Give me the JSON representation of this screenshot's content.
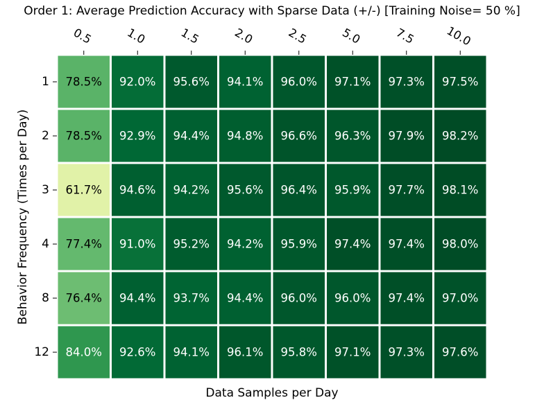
{
  "chart_data": {
    "type": "heatmap",
    "title": "Order 1: Average Prediction Accuracy with Sparse Data (+/-) [Training Noise= 50 %]",
    "xlabel": "Data Samples per Day",
    "ylabel": "Behavior Frequency (Times per Day)",
    "x_categories": [
      "0.5",
      "1.0",
      "1.5",
      "2.0",
      "2.5",
      "5.0",
      "7.5",
      "10.0"
    ],
    "y_categories": [
      "1",
      "2",
      "3",
      "4",
      "8",
      "12"
    ],
    "values": [
      [
        78.5,
        92.0,
        95.6,
        94.1,
        96.0,
        97.1,
        97.3,
        97.5
      ],
      [
        78.5,
        92.9,
        94.4,
        94.8,
        96.6,
        96.3,
        97.9,
        98.2
      ],
      [
        61.7,
        94.6,
        94.2,
        95.6,
        96.4,
        95.9,
        97.7,
        98.1
      ],
      [
        77.4,
        91.0,
        95.2,
        94.2,
        95.9,
        97.4,
        97.4,
        98.0
      ],
      [
        76.4,
        94.4,
        93.7,
        94.4,
        96.0,
        96.0,
        97.4,
        97.0
      ],
      [
        84.0,
        92.6,
        94.1,
        96.1,
        95.8,
        97.1,
        97.3,
        97.6
      ]
    ],
    "value_suffix": "%",
    "colormap": "YlGn",
    "colormap_stops": [
      "#e1f2a8",
      "#c2e69a",
      "#94d184",
      "#64b96e",
      "#38a055",
      "#16803f",
      "#006835",
      "#004b25"
    ],
    "color_range": [
      61.7,
      98.2
    ],
    "cell_border_color": "#ffffff"
  }
}
